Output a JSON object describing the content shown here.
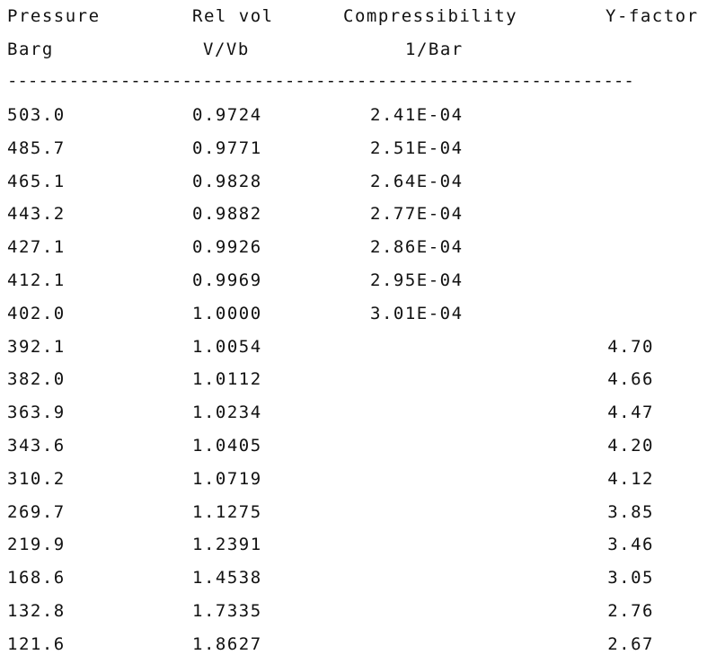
{
  "headers": {
    "row1": {
      "pressure": "Pressure",
      "rel_vol": "Rel vol",
      "compressibility": "Compressibility",
      "y_factor": "Y-factor"
    },
    "row2": {
      "pressure_unit": "Barg",
      "rel_vol_unit": "V/Vb",
      "compressibility_unit": "1/Bar"
    }
  },
  "separator": "-------------------------------------------------------------",
  "rows": [
    {
      "pressure": "503.0",
      "rel_vol": "0.9724",
      "compressibility": "2.41E-04",
      "y_factor": ""
    },
    {
      "pressure": "485.7",
      "rel_vol": "0.9771",
      "compressibility": "2.51E-04",
      "y_factor": ""
    },
    {
      "pressure": "465.1",
      "rel_vol": "0.9828",
      "compressibility": "2.64E-04",
      "y_factor": ""
    },
    {
      "pressure": "443.2",
      "rel_vol": "0.9882",
      "compressibility": "2.77E-04",
      "y_factor": ""
    },
    {
      "pressure": "427.1",
      "rel_vol": "0.9926",
      "compressibility": "2.86E-04",
      "y_factor": ""
    },
    {
      "pressure": "412.1",
      "rel_vol": "0.9969",
      "compressibility": "2.95E-04",
      "y_factor": ""
    },
    {
      "pressure": "402.0",
      "rel_vol": "1.0000",
      "compressibility": "3.01E-04",
      "y_factor": ""
    },
    {
      "pressure": "392.1",
      "rel_vol": "1.0054",
      "compressibility": "",
      "y_factor": "4.70"
    },
    {
      "pressure": "382.0",
      "rel_vol": "1.0112",
      "compressibility": "",
      "y_factor": "4.66"
    },
    {
      "pressure": "363.9",
      "rel_vol": "1.0234",
      "compressibility": "",
      "y_factor": "4.47"
    },
    {
      "pressure": "343.6",
      "rel_vol": "1.0405",
      "compressibility": "",
      "y_factor": "4.20"
    },
    {
      "pressure": "310.2",
      "rel_vol": "1.0719",
      "compressibility": "",
      "y_factor": "4.12"
    },
    {
      "pressure": "269.7",
      "rel_vol": "1.1275",
      "compressibility": "",
      "y_factor": "3.85"
    },
    {
      "pressure": "219.9",
      "rel_vol": "1.2391",
      "compressibility": "",
      "y_factor": "3.46"
    },
    {
      "pressure": "168.6",
      "rel_vol": "1.4538",
      "compressibility": "",
      "y_factor": "3.05"
    },
    {
      "pressure": "132.8",
      "rel_vol": "1.7335",
      "compressibility": "",
      "y_factor": "2.76"
    },
    {
      "pressure": "121.6",
      "rel_vol": "1.8627",
      "compressibility": "",
      "y_factor": "2.67"
    }
  ]
}
